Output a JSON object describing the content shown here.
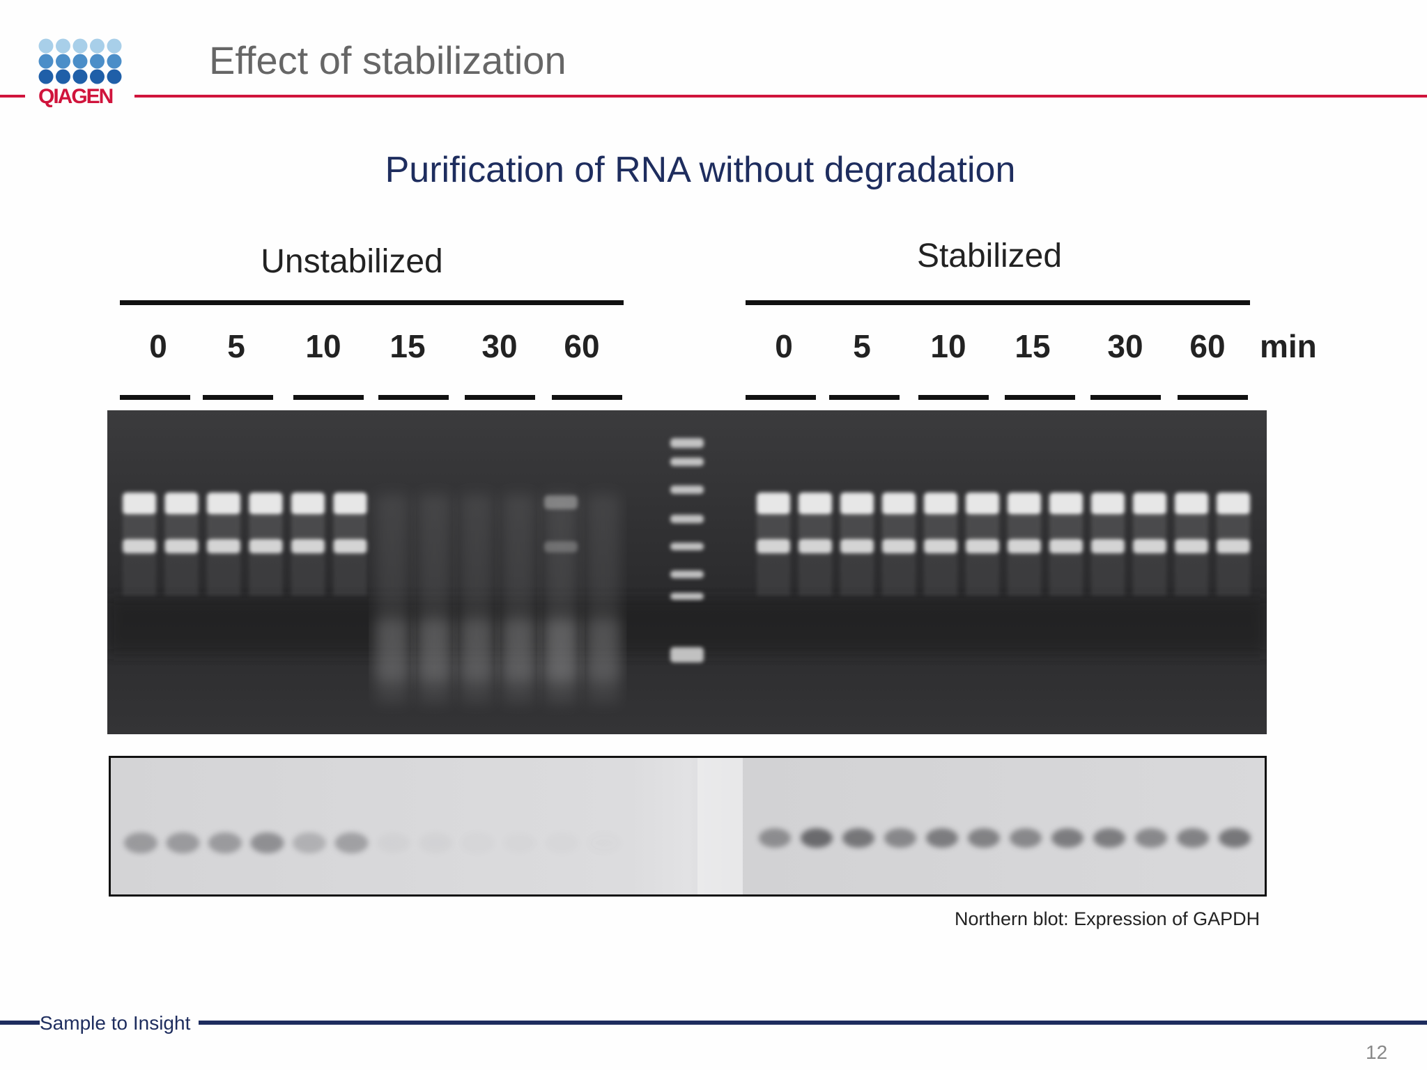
{
  "header": {
    "title": "Effect of stabilization",
    "logo_text": "QIAGEN",
    "accent_color": "#d0143c",
    "logo_light_color": "#a8cfe9",
    "logo_mid_color": "#4b8ec8",
    "logo_dark_color": "#1f5fa8"
  },
  "main": {
    "subtitle": "Purification of RNA without  degradation",
    "subtitle_color": "#1e2d5e",
    "groups": {
      "unstabilized": "Unstabilized",
      "stabilized": "Stabilized"
    },
    "time_unit": "min",
    "unstabilized_times": [
      "0",
      "5",
      "10",
      "15",
      "30",
      "60"
    ],
    "stabilized_times": [
      "0",
      "5",
      "10",
      "15",
      "30",
      "60"
    ],
    "gel_lanes_unstabilized": [
      {
        "intensity": 1.0
      },
      {
        "intensity": 1.0
      },
      {
        "intensity": 1.0
      },
      {
        "intensity": 1.0
      },
      {
        "intensity": 1.0
      },
      {
        "intensity": 1.0
      },
      {
        "intensity": 0.25
      },
      {
        "intensity": 0.3
      },
      {
        "intensity": 0.25
      },
      {
        "intensity": 0.3
      },
      {
        "intensity": 0.45
      },
      {
        "intensity": 0.2
      }
    ],
    "gel_lanes_stabilized": [
      {
        "intensity": 1.0
      },
      {
        "intensity": 1.0
      },
      {
        "intensity": 1.0
      },
      {
        "intensity": 1.0
      },
      {
        "intensity": 1.0
      },
      {
        "intensity": 1.0
      },
      {
        "intensity": 1.0
      },
      {
        "intensity": 1.0
      },
      {
        "intensity": 1.0
      },
      {
        "intensity": 1.0
      },
      {
        "intensity": 1.0
      },
      {
        "intensity": 1.0
      }
    ],
    "blot_lanes_unstabilized": [
      0.55,
      0.55,
      0.55,
      0.65,
      0.35,
      0.5,
      0.05,
      0.05,
      0.03,
      0.03,
      0.03,
      0.02
    ],
    "blot_lanes_stabilized": [
      0.6,
      0.9,
      0.8,
      0.65,
      0.75,
      0.7,
      0.65,
      0.75,
      0.75,
      0.65,
      0.7,
      0.8
    ],
    "caption": "Northern blot: Expression of GAPDH"
  },
  "footer": {
    "tagline": "Sample to Insight",
    "page_number": "12",
    "rule_color": "#1e2d5e"
  }
}
